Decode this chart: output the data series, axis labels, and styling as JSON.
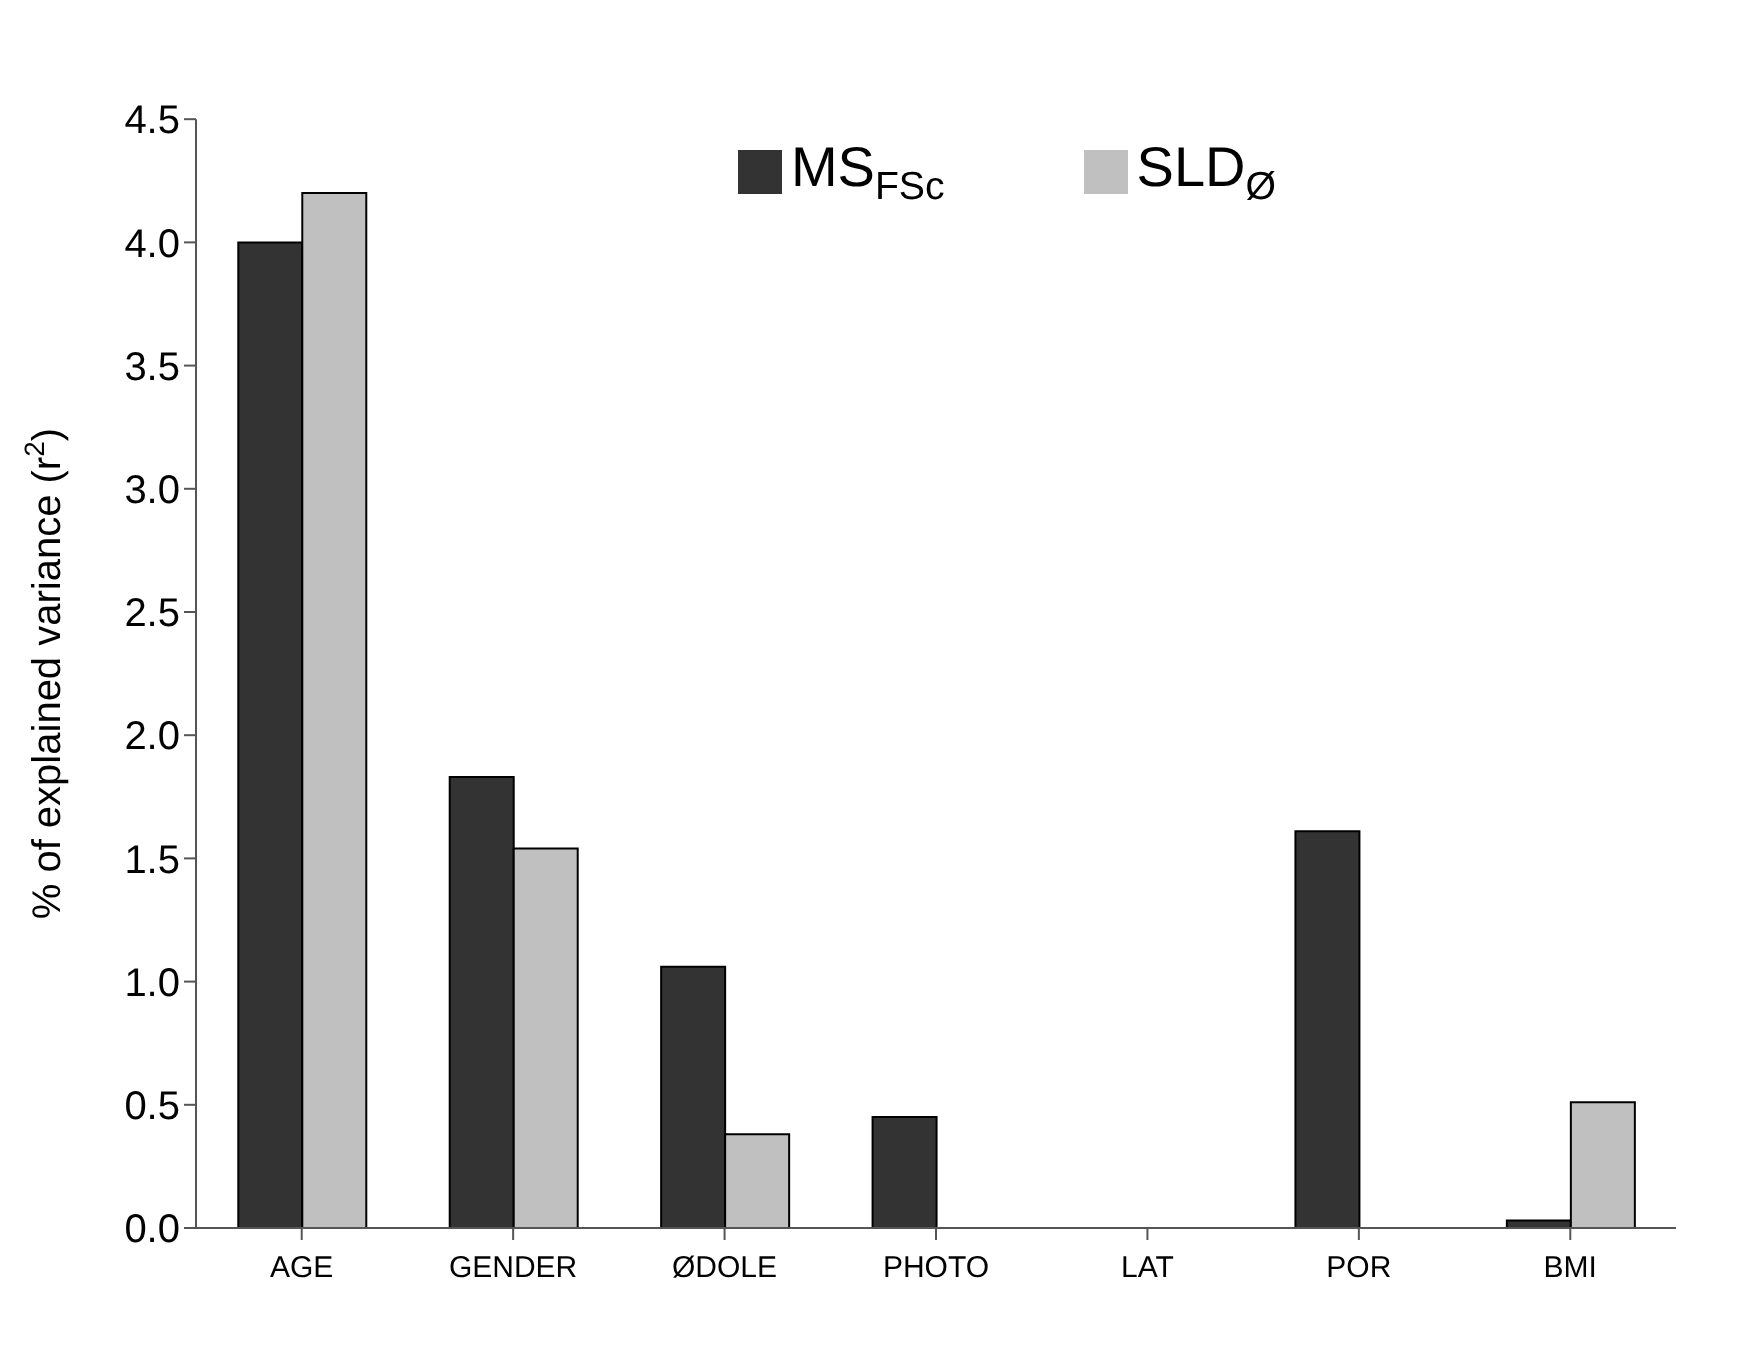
{
  "chart_data": {
    "type": "bar",
    "ylabel": "% of explained variance (r$^{2}$)",
    "categories": [
      "AGE",
      "GENDER",
      "ØDOLE",
      "PHOTO",
      "LAT",
      "POR",
      "BMI"
    ],
    "series": [
      {
        "name": "MS$_{FSc}$",
        "color": "#333333",
        "values": [
          4.0,
          1.83,
          1.06,
          0.45,
          0,
          1.61,
          0.03
        ]
      },
      {
        "name": "SLD$_{Ø}$",
        "color": "#c0c0c0",
        "values": [
          4.2,
          1.54,
          0.38,
          0,
          0,
          0,
          0.51
        ]
      }
    ],
    "ylim": [
      0,
      4.5
    ],
    "yticks": [
      {
        "value": 0,
        "label": "0.0"
      },
      0.5,
      {
        "value": 1,
        "label": "1.0"
      },
      1.5,
      {
        "value": 2,
        "label": "2.0"
      },
      2.5,
      {
        "value": 3,
        "label": "3.0"
      },
      3.5,
      {
        "value": 4,
        "label": "4.0"
      },
      4.5
    ],
    "grid": false,
    "legend": "top right"
  }
}
